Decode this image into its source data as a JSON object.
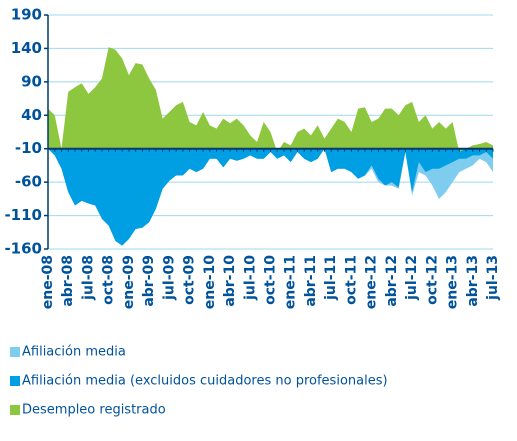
{
  "chart_data": {
    "type": "area",
    "categories": [
      "ene-08",
      null,
      null,
      "abr-08",
      null,
      null,
      "jul-08",
      null,
      null,
      "oct-08",
      null,
      null,
      "ene-09",
      null,
      null,
      "abr-09",
      null,
      null,
      "jul-09",
      null,
      null,
      "oct-09",
      null,
      null,
      "ene-10",
      null,
      null,
      "abr-10",
      null,
      null,
      "jul-10",
      null,
      null,
      "oct-10",
      null,
      null,
      "ene-11",
      null,
      null,
      "abr-11",
      null,
      null,
      "jul-11",
      null,
      null,
      "oct-11",
      null,
      null,
      "ene-12",
      null,
      null,
      "abr-12",
      null,
      null,
      "jul-12",
      null,
      null,
      "oct-12",
      null,
      null,
      "ene-13",
      null,
      null,
      "abr-13",
      null,
      null,
      "jul-13"
    ],
    "series": [
      {
        "name": "Afiliación media",
        "color": "#7fcdee",
        "values": [
          -10,
          -20,
          -40,
          -75,
          -95,
          -88,
          -92,
          -95,
          -115,
          -125,
          -148,
          -155,
          -145,
          -130,
          -128,
          -120,
          -100,
          -70,
          -58,
          -50,
          -50,
          -40,
          -45,
          -40,
          -25,
          -25,
          -38,
          -25,
          -28,
          -25,
          -20,
          -25,
          -25,
          -15,
          -25,
          -20,
          -30,
          -15,
          -25,
          -30,
          -25,
          -10,
          -45,
          -40,
          -40,
          -45,
          -55,
          -50,
          -40,
          -60,
          -65,
          -65,
          -70,
          -15,
          -80,
          -45,
          -50,
          -65,
          -85,
          -75,
          -60,
          -45,
          -40,
          -35,
          -25,
          -30,
          -45
        ]
      },
      {
        "name": "Afiliación media (excluidos cuidadores no profesionales)",
        "color": "#009fe3",
        "values": [
          -10,
          -20,
          -40,
          -75,
          -95,
          -88,
          -92,
          -95,
          -115,
          -125,
          -148,
          -155,
          -145,
          -130,
          -128,
          -120,
          -100,
          -70,
          -58,
          -50,
          -50,
          -40,
          -45,
          -40,
          -25,
          -25,
          -38,
          -25,
          -28,
          -25,
          -20,
          -25,
          -25,
          -15,
          -25,
          -20,
          -30,
          -15,
          -25,
          -30,
          -25,
          -10,
          -45,
          -40,
          -40,
          -45,
          -55,
          -50,
          -35,
          -55,
          -65,
          -60,
          -68,
          -15,
          -75,
          -30,
          -45,
          -40,
          -40,
          -35,
          -30,
          -25,
          -25,
          -20,
          -20,
          -15,
          -25
        ]
      },
      {
        "name": "Desempleo registrado",
        "color": "#8dc63f",
        "values": [
          50,
          40,
          -10,
          75,
          82,
          88,
          72,
          82,
          95,
          142,
          138,
          125,
          100,
          118,
          116,
          95,
          78,
          35,
          45,
          55,
          60,
          30,
          25,
          45,
          25,
          20,
          35,
          28,
          35,
          25,
          10,
          0,
          30,
          15,
          -15,
          0,
          -5,
          15,
          20,
          10,
          25,
          5,
          20,
          35,
          30,
          15,
          50,
          52,
          30,
          35,
          50,
          50,
          40,
          55,
          60,
          30,
          40,
          20,
          30,
          20,
          30,
          -15,
          -10,
          -5,
          -3,
          0,
          -5
        ]
      }
    ],
    "ylim": [
      -160,
      190
    ],
    "yticks": [
      190,
      140,
      90,
      40,
      -10,
      -60,
      -110,
      -160
    ],
    "baseline": -10,
    "grid": true
  }
}
